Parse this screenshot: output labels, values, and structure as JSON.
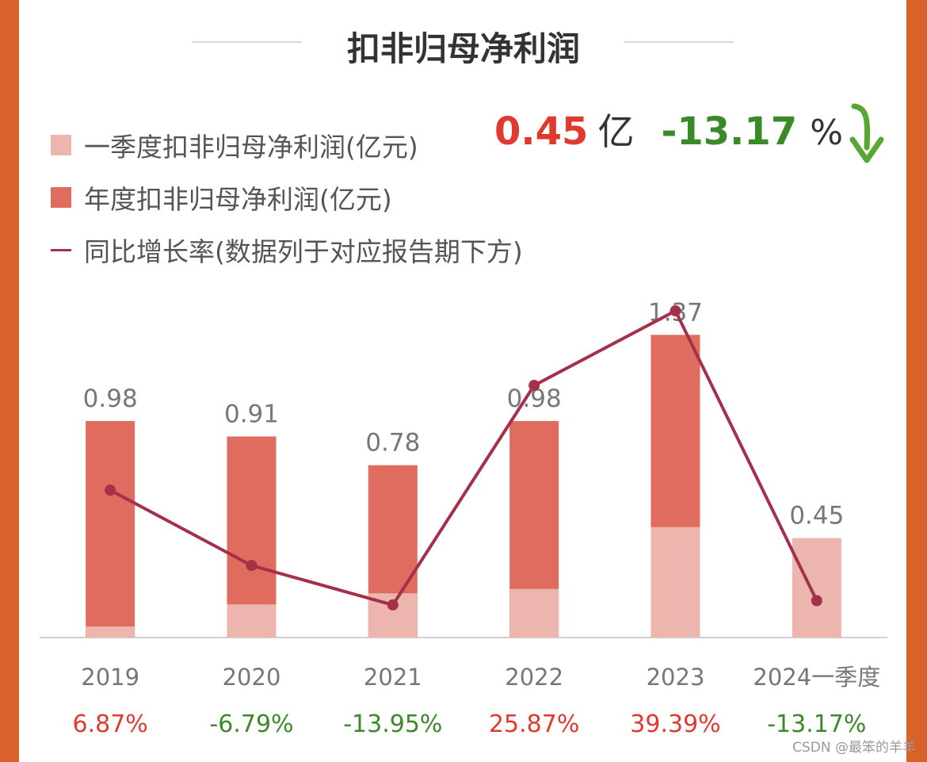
{
  "colors": {
    "frame": "#d9622b",
    "q1_bar": "#ecb5ae",
    "annual_bar": "#e06b5f",
    "growth_line": "#a4304a",
    "positive": "#e03a2f",
    "negative": "#3b8a2a",
    "axis": "#d0d0d0",
    "label_gray": "#777777"
  },
  "header": {
    "title": "扣非归母净利润"
  },
  "legend": {
    "q1": "一季度扣非归母净利润(亿元)",
    "annual": "年度扣非归母净利润(亿元)",
    "growth": "同比增长率(数据列于对应报告期下方)"
  },
  "kpi": {
    "value": "0.45",
    "unit": "亿",
    "change": "-13.17",
    "change_unit": "%",
    "trend_icon": "arrow-down-icon"
  },
  "watermark": "CSDN @最笨的羊羊",
  "chart_data": {
    "type": "bar",
    "categories": [
      "2019",
      "2020",
      "2021",
      "2022",
      "2023",
      "2024一季度"
    ],
    "series": [
      {
        "name": "一季度扣非归母净利润(亿元)",
        "values": [
          0.05,
          0.15,
          0.2,
          0.22,
          0.5,
          0.45
        ]
      },
      {
        "name": "年度扣非归母净利润(亿元)",
        "values": [
          0.98,
          0.91,
          0.78,
          0.98,
          1.37,
          null
        ]
      },
      {
        "name": "同比增长率(数据列于对应报告期下方)",
        "values": [
          6.87,
          -6.79,
          -13.95,
          25.87,
          39.39,
          -13.17
        ]
      }
    ],
    "bar_labels": [
      "0.98",
      "0.91",
      "0.78",
      "0.98",
      "1.37",
      "0.45"
    ],
    "growth_labels": [
      "6.87%",
      "-6.79%",
      "-13.95%",
      "25.87%",
      "39.39%",
      "-13.17%"
    ],
    "bar_ylim": [
      0,
      1.45
    ],
    "growth_ylim": [
      -20,
      44
    ]
  }
}
